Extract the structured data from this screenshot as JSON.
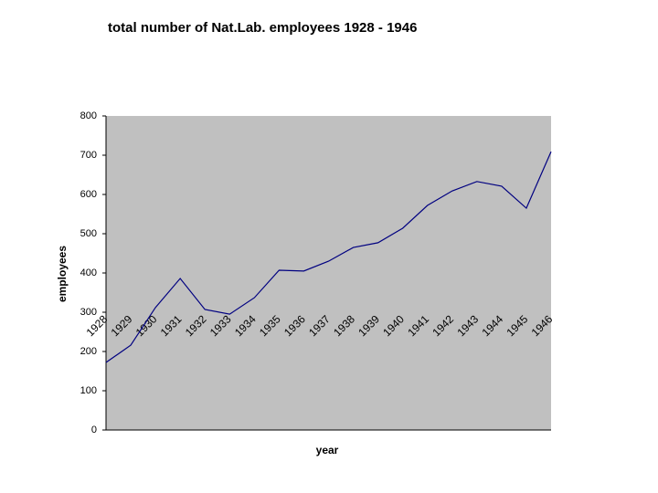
{
  "chart_data": {
    "type": "line",
    "title": "total number of Nat.Lab. employees 1928 - 1946",
    "x_label": "year",
    "y_label": "employees",
    "categories": [
      "1928",
      "1929",
      "1930",
      "1931",
      "1932",
      "1933",
      "1934",
      "1935",
      "1936",
      "1937",
      "1938",
      "1939",
      "1940",
      "1941",
      "1942",
      "1943",
      "1944",
      "1945",
      "1946"
    ],
    "values": [
      172,
      216,
      312,
      386,
      307,
      295,
      337,
      407,
      405,
      430,
      465,
      477,
      514,
      572,
      609,
      633,
      621,
      565,
      709
    ],
    "color": "#000080",
    "background": "#c0c0c0",
    "ylim": [
      0,
      800
    ],
    "yticks": [
      0,
      100,
      200,
      300,
      400,
      500,
      600,
      700,
      800
    ],
    "grid": false
  }
}
